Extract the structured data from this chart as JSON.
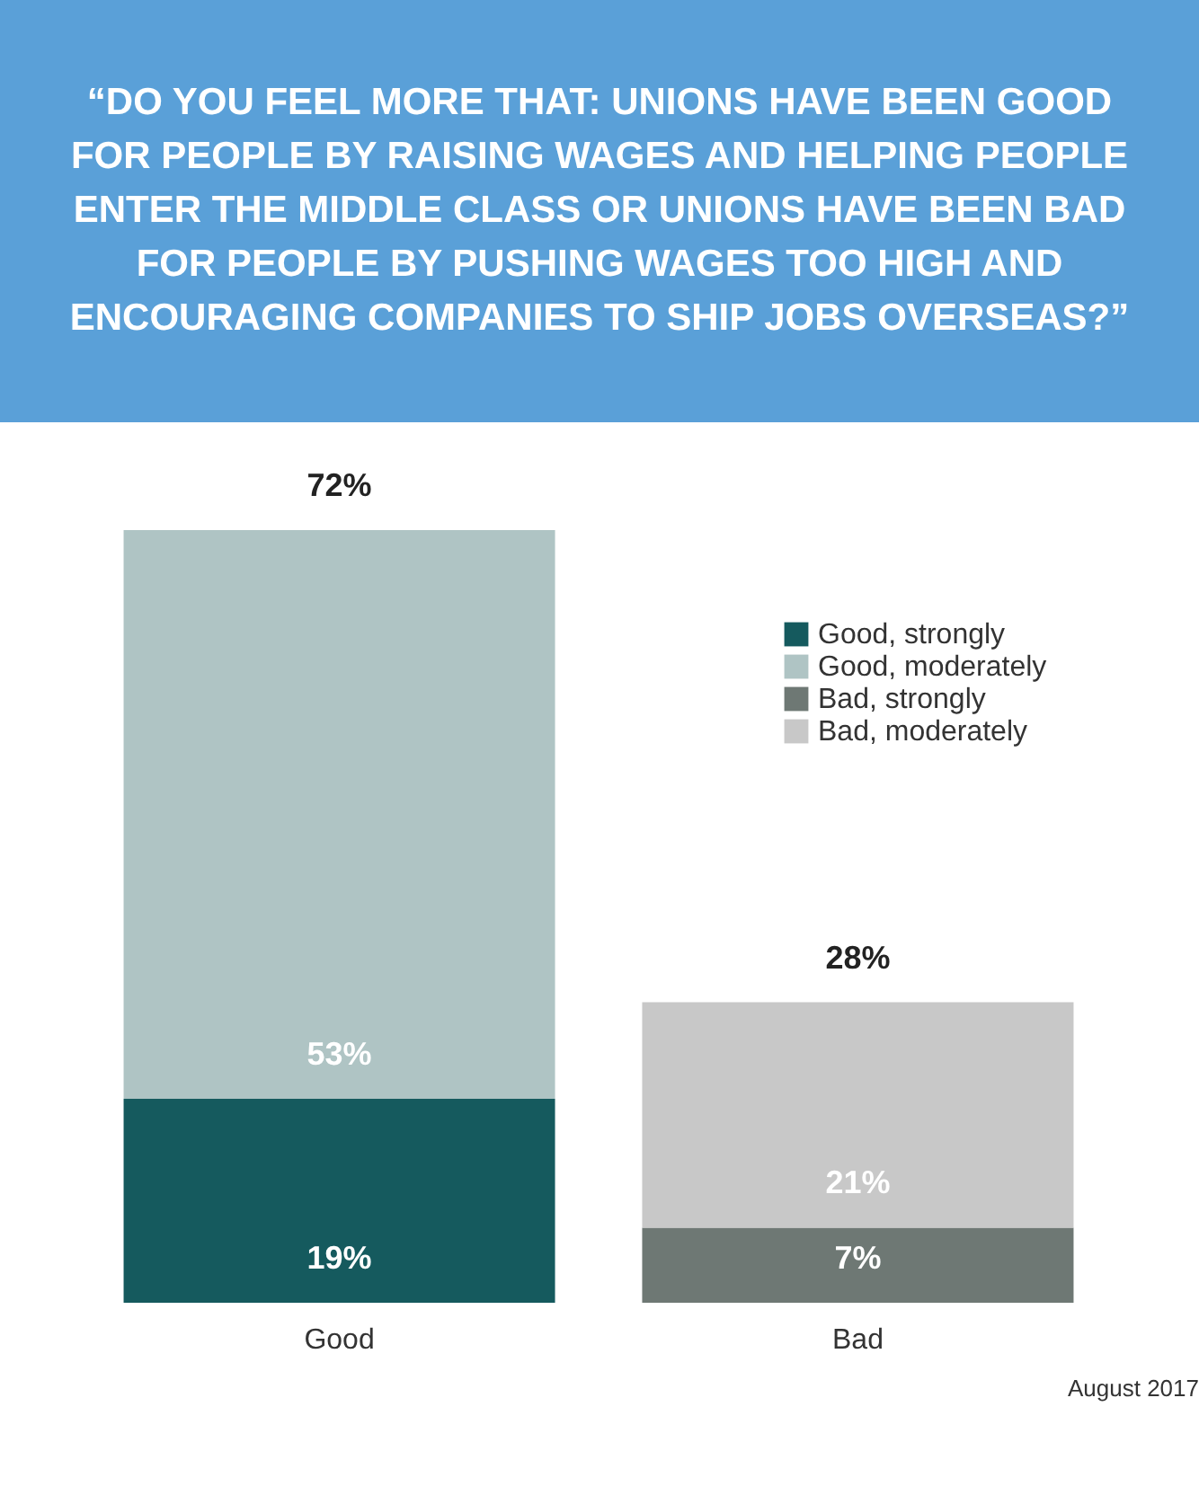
{
  "chart_data": {
    "type": "bar",
    "stacked": true,
    "title": "“DO YOU FEEL MORE THAT: UNIONS HAVE BEEN GOOD FOR PEOPLE BY RAISING WAGES AND HELPING PEOPLE ENTER THE MIDDLE CLASS OR UNIONS HAVE BEEN BAD FOR PEOPLE BY PUSHING WAGES TOO HIGH AND ENCOURAGING COMPANIES TO SHIP JOBS OVERSEAS?”",
    "categories": [
      "Good",
      "Bad"
    ],
    "series": [
      {
        "name": "Good, strongly",
        "color": "#155a5e",
        "values": [
          19,
          null
        ],
        "value_labels": [
          "19%",
          null
        ]
      },
      {
        "name": "Good, moderately",
        "color": "#afc4c4",
        "values": [
          53,
          null
        ],
        "value_labels": [
          "53%",
          null
        ]
      },
      {
        "name": "Bad, strongly",
        "color": "#6e7874",
        "values": [
          null,
          7
        ],
        "value_labels": [
          null,
          "7%"
        ]
      },
      {
        "name": "Bad, moderately",
        "color": "#c8c8c8",
        "values": [
          null,
          21
        ],
        "value_labels": [
          null,
          "21%"
        ]
      }
    ],
    "totals": [
      "72%",
      "28%"
    ],
    "legend": "top right",
    "grid": false,
    "tick_labels": "x",
    "annotations": [
      "August 2017"
    ]
  }
}
